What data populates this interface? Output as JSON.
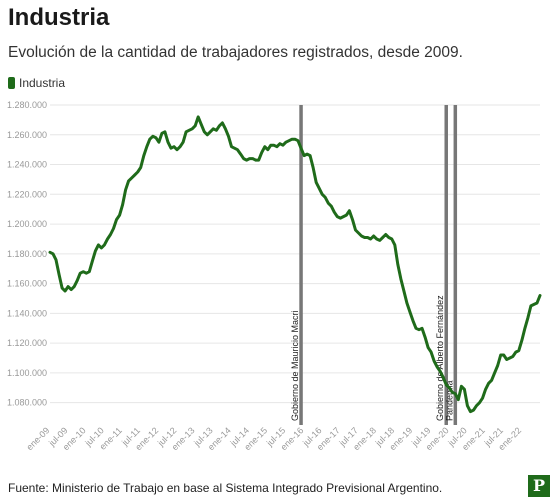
{
  "title": "Industria",
  "subtitle": "Evolución de la cantidad de trabajadores registrados, desde 2009.",
  "source": "Fuente: Ministerio de Trabajo en base al Sistema Integrado Previsional Argentino.",
  "logo_letter": "P",
  "colors": {
    "line": "#1f6b1a",
    "annotation": "#777777",
    "grid": "#e6e6e6"
  },
  "chart_data": {
    "type": "line",
    "legend": "top-left",
    "grid": true,
    "ylim": [
      1065000,
      1280000
    ],
    "y_ticks": [
      1080000,
      1100000,
      1120000,
      1140000,
      1160000,
      1180000,
      1200000,
      1220000,
      1240000,
      1260000,
      1280000
    ],
    "y_tick_labels": [
      "1.080.000",
      "1.100.000",
      "1.120.000",
      "1.140.000",
      "1.160.000",
      "1.180.000",
      "1.200.000",
      "1.220.000",
      "1.240.000",
      "1.260.000",
      "1.280.000"
    ],
    "x_ticks": [
      "2009-01",
      "2009-07",
      "2010-01",
      "2010-07",
      "2011-01",
      "2011-07",
      "2012-01",
      "2012-07",
      "2013-01",
      "2013-07",
      "2014-01",
      "2014-07",
      "2015-01",
      "2015-07",
      "2016-01",
      "2016-07",
      "2017-01",
      "2017-07",
      "2018-01",
      "2018-07",
      "2019-01",
      "2019-07",
      "2020-01",
      "2020-07",
      "2021-01",
      "2021-07",
      "2022-01"
    ],
    "x_tick_labels": [
      "ene-09",
      "jul-09",
      "ene-10",
      "jul-10",
      "ene-11",
      "jul-11",
      "ene-12",
      "jul-12",
      "ene-13",
      "jul-13",
      "ene-14",
      "jul-14",
      "ene-15",
      "jul-15",
      "ene-16",
      "jul-16",
      "ene-17",
      "jul-17",
      "ene-18",
      "jul-18",
      "ene-19",
      "jul-19",
      "ene-20",
      "jul-20",
      "ene-21",
      "jul-21",
      "ene-22"
    ],
    "x_range": [
      "2009-01",
      "2022-07"
    ],
    "series": [
      {
        "name": "Industria",
        "points": [
          [
            "2009-01",
            1181000
          ],
          [
            "2009-02",
            1180000
          ],
          [
            "2009-03",
            1176000
          ],
          [
            "2009-04",
            1166000
          ],
          [
            "2009-05",
            1157000
          ],
          [
            "2009-06",
            1155000
          ],
          [
            "2009-07",
            1158000
          ],
          [
            "2009-08",
            1156000
          ],
          [
            "2009-09",
            1158000
          ],
          [
            "2009-10",
            1162000
          ],
          [
            "2009-11",
            1167000
          ],
          [
            "2009-12",
            1168000
          ],
          [
            "2010-01",
            1167000
          ],
          [
            "2010-02",
            1168000
          ],
          [
            "2010-03",
            1175000
          ],
          [
            "2010-04",
            1182000
          ],
          [
            "2010-05",
            1186000
          ],
          [
            "2010-06",
            1184000
          ],
          [
            "2010-07",
            1186000
          ],
          [
            "2010-08",
            1190000
          ],
          [
            "2010-09",
            1193000
          ],
          [
            "2010-10",
            1197000
          ],
          [
            "2010-11",
            1203000
          ],
          [
            "2010-12",
            1206000
          ],
          [
            "2011-01",
            1213000
          ],
          [
            "2011-02",
            1223000
          ],
          [
            "2011-03",
            1229000
          ],
          [
            "2011-04",
            1231000
          ],
          [
            "2011-05",
            1233000
          ],
          [
            "2011-06",
            1235000
          ],
          [
            "2011-07",
            1238000
          ],
          [
            "2011-08",
            1246000
          ],
          [
            "2011-09",
            1252000
          ],
          [
            "2011-10",
            1257000
          ],
          [
            "2011-11",
            1259000
          ],
          [
            "2011-12",
            1258000
          ],
          [
            "2012-01",
            1255000
          ],
          [
            "2012-02",
            1261000
          ],
          [
            "2012-03",
            1262000
          ],
          [
            "2012-04",
            1255000
          ],
          [
            "2012-05",
            1251000
          ],
          [
            "2012-06",
            1252000
          ],
          [
            "2012-07",
            1250000
          ],
          [
            "2012-08",
            1252000
          ],
          [
            "2012-09",
            1255000
          ],
          [
            "2012-10",
            1262000
          ],
          [
            "2012-11",
            1263000
          ],
          [
            "2012-12",
            1264000
          ],
          [
            "2013-01",
            1266000
          ],
          [
            "2013-02",
            1272000
          ],
          [
            "2013-03",
            1267000
          ],
          [
            "2013-04",
            1262000
          ],
          [
            "2013-05",
            1260000
          ],
          [
            "2013-06",
            1262000
          ],
          [
            "2013-07",
            1264000
          ],
          [
            "2013-08",
            1263000
          ],
          [
            "2013-09",
            1266000
          ],
          [
            "2013-10",
            1268000
          ],
          [
            "2013-11",
            1264000
          ],
          [
            "2013-12",
            1259000
          ],
          [
            "2014-01",
            1252000
          ],
          [
            "2014-02",
            1251000
          ],
          [
            "2014-03",
            1250000
          ],
          [
            "2014-04",
            1247000
          ],
          [
            "2014-05",
            1244000
          ],
          [
            "2014-06",
            1243000
          ],
          [
            "2014-07",
            1244000
          ],
          [
            "2014-08",
            1244000
          ],
          [
            "2014-09",
            1243000
          ],
          [
            "2014-10",
            1243000
          ],
          [
            "2014-11",
            1248000
          ],
          [
            "2014-12",
            1252000
          ],
          [
            "2015-01",
            1250000
          ],
          [
            "2015-02",
            1253000
          ],
          [
            "2015-03",
            1253000
          ],
          [
            "2015-04",
            1252000
          ],
          [
            "2015-05",
            1254000
          ],
          [
            "2015-06",
            1253000
          ],
          [
            "2015-07",
            1255000
          ],
          [
            "2015-08",
            1256000
          ],
          [
            "2015-09",
            1257000
          ],
          [
            "2015-10",
            1257000
          ],
          [
            "2015-11",
            1256000
          ],
          [
            "2015-12",
            1251000
          ],
          [
            "2016-01",
            1246000
          ],
          [
            "2016-02",
            1247000
          ],
          [
            "2016-03",
            1246000
          ],
          [
            "2016-04",
            1238000
          ],
          [
            "2016-05",
            1228000
          ],
          [
            "2016-06",
            1224000
          ],
          [
            "2016-07",
            1220000
          ],
          [
            "2016-08",
            1218000
          ],
          [
            "2016-09",
            1214000
          ],
          [
            "2016-10",
            1212000
          ],
          [
            "2016-11",
            1208000
          ],
          [
            "2016-12",
            1205000
          ],
          [
            "2017-01",
            1204000
          ],
          [
            "2017-02",
            1205000
          ],
          [
            "2017-03",
            1206000
          ],
          [
            "2017-04",
            1209000
          ],
          [
            "2017-05",
            1203000
          ],
          [
            "2017-06",
            1196000
          ],
          [
            "2017-07",
            1194000
          ],
          [
            "2017-08",
            1192000
          ],
          [
            "2017-09",
            1191000
          ],
          [
            "2017-10",
            1191000
          ],
          [
            "2017-11",
            1190000
          ],
          [
            "2017-12",
            1192000
          ],
          [
            "2018-01",
            1190000
          ],
          [
            "2018-02",
            1189000
          ],
          [
            "2018-03",
            1191000
          ],
          [
            "2018-04",
            1193000
          ],
          [
            "2018-05",
            1191000
          ],
          [
            "2018-06",
            1190000
          ],
          [
            "2018-07",
            1186000
          ],
          [
            "2018-08",
            1173000
          ],
          [
            "2018-09",
            1163000
          ],
          [
            "2018-10",
            1155000
          ],
          [
            "2018-11",
            1147000
          ],
          [
            "2018-12",
            1141000
          ],
          [
            "2019-01",
            1135000
          ],
          [
            "2019-02",
            1130000
          ],
          [
            "2019-03",
            1129000
          ],
          [
            "2019-04",
            1130000
          ],
          [
            "2019-05",
            1124000
          ],
          [
            "2019-06",
            1117000
          ],
          [
            "2019-07",
            1114000
          ],
          [
            "2019-08",
            1108000
          ],
          [
            "2019-09",
            1104000
          ],
          [
            "2019-10",
            1101000
          ],
          [
            "2019-11",
            1097000
          ],
          [
            "2019-12",
            1092000
          ],
          [
            "2020-01",
            1090000
          ],
          [
            "2020-02",
            1087000
          ],
          [
            "2020-03",
            1086000
          ],
          [
            "2020-04",
            1082000
          ],
          [
            "2020-05",
            1091000
          ],
          [
            "2020-06",
            1089000
          ],
          [
            "2020-07",
            1078000
          ],
          [
            "2020-08",
            1074000
          ],
          [
            "2020-09",
            1075000
          ],
          [
            "2020-10",
            1078000
          ],
          [
            "2020-11",
            1080000
          ],
          [
            "2020-12",
            1083000
          ],
          [
            "2021-01",
            1089000
          ],
          [
            "2021-02",
            1093000
          ],
          [
            "2021-03",
            1095000
          ],
          [
            "2021-04",
            1100000
          ],
          [
            "2021-05",
            1105000
          ],
          [
            "2021-06",
            1112000
          ],
          [
            "2021-07",
            1112000
          ],
          [
            "2021-08",
            1109000
          ],
          [
            "2021-09",
            1110000
          ],
          [
            "2021-10",
            1111000
          ],
          [
            "2021-11",
            1114000
          ],
          [
            "2021-12",
            1115000
          ],
          [
            "2022-01",
            1122000
          ],
          [
            "2022-02",
            1130000
          ],
          [
            "2022-03",
            1137000
          ],
          [
            "2022-04",
            1145000
          ],
          [
            "2022-05",
            1146000
          ],
          [
            "2022-06",
            1147000
          ],
          [
            "2022-07",
            1152000
          ]
        ]
      }
    ],
    "annotations": [
      {
        "x": "2015-12",
        "label": "Gobierno de Mauricio Macri"
      },
      {
        "x": "2019-12",
        "label": "Gobierno de Alberto Fernández"
      },
      {
        "x": "2020-03",
        "label": "Pandemia"
      }
    ]
  }
}
